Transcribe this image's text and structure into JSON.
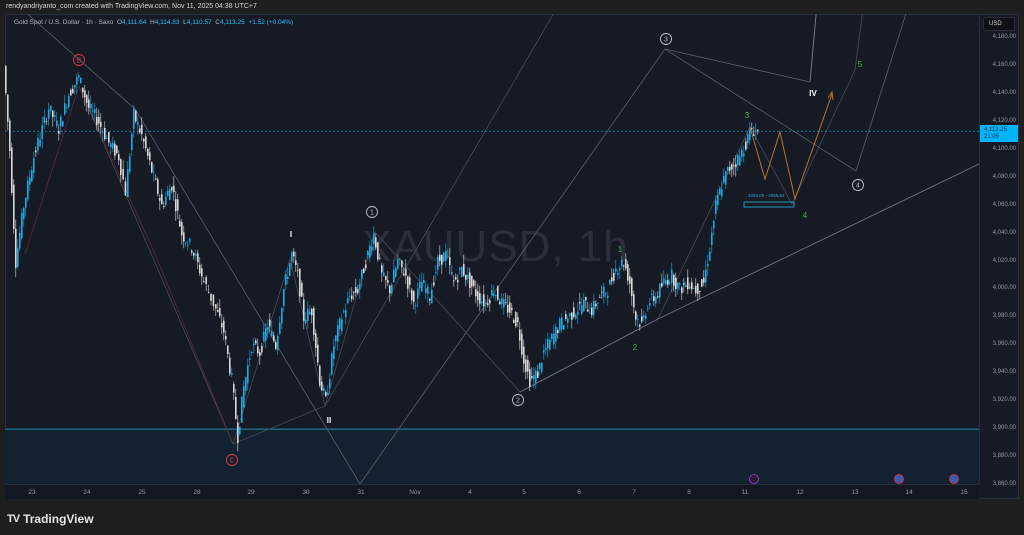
{
  "attribution": "rendyandriyanto_com created with TradingView.com, Nov 11, 2025 04:38 UTC+7",
  "legend": {
    "symbol": "Gold Spot / U.S. Dollar · 1h · Saxo",
    "open_label": "O",
    "open": "4,111.64",
    "high_label": "H",
    "high": "4,114.83",
    "low_label": "L",
    "low": "4,110.57",
    "close_label": "C",
    "close": "4,113.25",
    "change": "+1.52 (+0.04%)"
  },
  "watermark": "XAUUSD, 1h",
  "currency_button": "USD",
  "price_tag": {
    "price": "4,113.25",
    "countdown": "21:05"
  },
  "footer": {
    "brand": "TradingView",
    "brand_mark": "TV"
  },
  "colors": {
    "up": "#22abe3",
    "down": "#d9d9d9",
    "bg": "#161a25",
    "accent": "#00b4ff",
    "support_zone": "#132230",
    "label_red": "#e0384f",
    "label_green": "#4caf50",
    "projection": "#b8772a"
  },
  "chart_data": {
    "type": "candlestick",
    "title": "Gold Spot / U.S. Dollar · 1h · Saxo (XAUUSD)",
    "xlabel": "",
    "ylabel": "USD",
    "ylim": [
      3860,
      4190
    ],
    "y_ticks": [
      "4,180.00",
      "4,160.00",
      "4,140.00",
      "4,120.00",
      "4,100.00",
      "4,080.00",
      "4,060.00",
      "4,040.00",
      "4,020.00",
      "4,000.00",
      "3,980.00",
      "3,960.00",
      "3,940.00",
      "3,920.00",
      "3,900.00",
      "3,880.00",
      "3,860.00"
    ],
    "x_ticks": [
      "23",
      "24",
      "25",
      "28",
      "29",
      "30",
      "31",
      "Nov",
      "4",
      "5",
      "6",
      "7",
      "8",
      "11",
      "12",
      "13",
      "14",
      "15"
    ],
    "last_price": 4113.25,
    "path_points": [
      [
        0,
        4160
      ],
      [
        6,
        4100
      ],
      [
        12,
        4020
      ],
      [
        20,
        4060
      ],
      [
        30,
        4095
      ],
      [
        45,
        4130
      ],
      [
        55,
        4115
      ],
      [
        65,
        4140
      ],
      [
        75,
        4152
      ],
      [
        85,
        4130
      ],
      [
        95,
        4120
      ],
      [
        105,
        4105
      ],
      [
        115,
        4095
      ],
      [
        122,
        4070
      ],
      [
        130,
        4125
      ],
      [
        138,
        4110
      ],
      [
        148,
        4085
      ],
      [
        158,
        4060
      ],
      [
        168,
        4075
      ],
      [
        178,
        4040
      ],
      [
        188,
        4030
      ],
      [
        198,
        4010
      ],
      [
        210,
        3990
      ],
      [
        220,
        3970
      ],
      [
        228,
        3935
      ],
      [
        234,
        3895
      ],
      [
        240,
        3930
      ],
      [
        248,
        3960
      ],
      [
        256,
        3955
      ],
      [
        264,
        3975
      ],
      [
        272,
        3960
      ],
      [
        280,
        4000
      ],
      [
        288,
        4025
      ],
      [
        294,
        4010
      ],
      [
        300,
        3980
      ],
      [
        308,
        3985
      ],
      [
        316,
        3935
      ],
      [
        322,
        3920
      ],
      [
        330,
        3960
      ],
      [
        338,
        3980
      ],
      [
        346,
        3995
      ],
      [
        354,
        4000
      ],
      [
        362,
        4020
      ],
      [
        370,
        4040
      ],
      [
        378,
        4010
      ],
      [
        386,
        4000
      ],
      [
        394,
        4020
      ],
      [
        402,
        4010
      ],
      [
        410,
        3990
      ],
      [
        418,
        4005
      ],
      [
        426,
        3995
      ],
      [
        434,
        4020
      ],
      [
        442,
        4025
      ],
      [
        450,
        4005
      ],
      [
        458,
        4015
      ],
      [
        466,
        4005
      ],
      [
        474,
        3995
      ],
      [
        482,
        3990
      ],
      [
        490,
        4000
      ],
      [
        498,
        3990
      ],
      [
        506,
        3985
      ],
      [
        514,
        3975
      ],
      [
        520,
        3950
      ],
      [
        526,
        3935
      ],
      [
        534,
        3940
      ],
      [
        540,
        3955
      ],
      [
        548,
        3965
      ],
      [
        556,
        3975
      ],
      [
        564,
        3980
      ],
      [
        572,
        3985
      ],
      [
        580,
        3990
      ],
      [
        588,
        3985
      ],
      [
        596,
        3995
      ],
      [
        604,
        4000
      ],
      [
        612,
        4015
      ],
      [
        620,
        4020
      ],
      [
        626,
        4005
      ],
      [
        632,
        3980
      ],
      [
        638,
        3975
      ],
      [
        644,
        3990
      ],
      [
        652,
        3995
      ],
      [
        660,
        4005
      ],
      [
        668,
        4010
      ],
      [
        676,
        4000
      ],
      [
        684,
        4005
      ],
      [
        692,
        4000
      ],
      [
        700,
        4005
      ],
      [
        706,
        4030
      ],
      [
        712,
        4060
      ],
      [
        718,
        4075
      ],
      [
        724,
        4085
      ],
      [
        730,
        4090
      ],
      [
        736,
        4095
      ],
      [
        742,
        4105
      ],
      [
        748,
        4115
      ],
      [
        754,
        4113
      ]
    ],
    "annotations": [
      {
        "label": "B",
        "type": "circled",
        "color": "#e0384f",
        "price": 4155
      },
      {
        "label": "C",
        "type": "circled",
        "color": "#e0384f",
        "price": 3887
      },
      {
        "label": "I",
        "type": "roman",
        "price": 4045
      },
      {
        "label": "II",
        "type": "roman",
        "price": 3915
      },
      {
        "label": "IV",
        "type": "roman",
        "price": 4140
      },
      {
        "label": "1",
        "type": "circled",
        "price": 4045
      },
      {
        "label": "2",
        "type": "circled",
        "price": 3923
      },
      {
        "label": "3",
        "type": "circled",
        "price": 4178
      },
      {
        "label": "4",
        "type": "circled",
        "price": 4082
      },
      {
        "label": "1",
        "type": "minor",
        "color": "#4caf50"
      },
      {
        "label": "2",
        "type": "minor",
        "color": "#4caf50"
      },
      {
        "label": "3",
        "type": "minor",
        "color": "#4caf50"
      },
      {
        "label": "4",
        "type": "minor",
        "color": "#4caf50"
      },
      {
        "label": "5",
        "type": "minor",
        "color": "#4caf50"
      }
    ],
    "target_zone": {
      "label": "4063.08 - 4056.62",
      "high": 4063.08,
      "low": 4056.62
    },
    "support_zone": {
      "top": 3900,
      "bottom": 3860
    }
  }
}
